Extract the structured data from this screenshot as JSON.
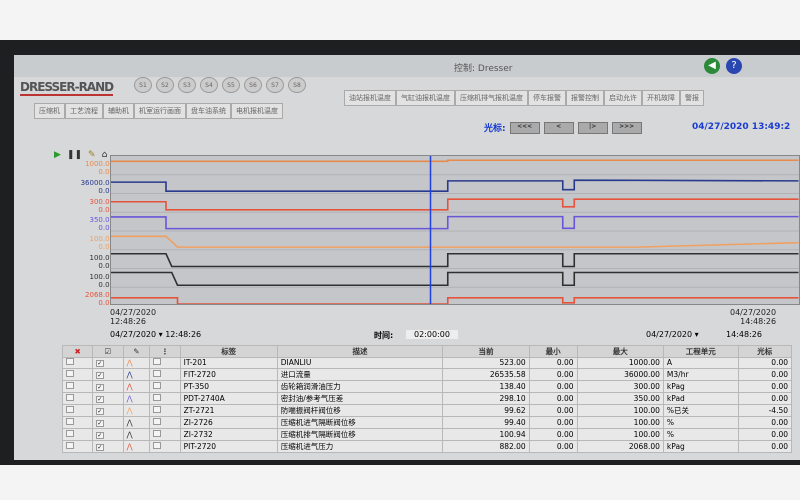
{
  "window": {
    "title": "控制: Dresser",
    "logo": "DRESSER-RAND",
    "back_icon": "arrow-left-icon",
    "help_icon": "question-icon"
  },
  "stations": [
    "S1",
    "S2",
    "S3",
    "S4",
    "S5",
    "S6",
    "S7",
    "S8"
  ],
  "tabs_top": [
    "油站报机温度",
    "气缸油报机温度",
    "压缩机排气报机温度",
    "停车报警",
    "报警控制",
    "启动允许",
    "开机故障",
    "警报"
  ],
  "tabs_bottom": [
    "压缩机",
    "工艺流程",
    "辅助机",
    "机室运行画面",
    "盘车油系统",
    "电机报机温度"
  ],
  "toolbar": {
    "cursor_label": "光标:",
    "buttons": [
      "<<<",
      "<",
      "|>",
      ">>>"
    ],
    "datetime": "04/27/2020 13:49:2"
  },
  "chart_data": {
    "type": "line",
    "x_start": "12:48:26",
    "x_end": "14:48:26",
    "x_start_label": {
      "date": "04/27/2020",
      "time": "12:48:26"
    },
    "x_end_label": {
      "date": "04/27/2020",
      "time": "14:48:26"
    },
    "cursor_time": "13:44",
    "series": [
      {
        "color": "#e88a4a",
        "ylim": [
          0,
          1000
        ],
        "max_label": "1000.00",
        "min_label": "0.00",
        "points": [
          [
            "12:48",
            900
          ],
          [
            "13:47",
            900
          ],
          [
            "13:47",
            980
          ],
          [
            "14:48",
            980
          ]
        ]
      },
      {
        "color": "#283a8c",
        "ylim": [
          0,
          36000
        ],
        "max_label": "36000.00",
        "min_label": "0.00",
        "points": [
          [
            "12:48",
            26500
          ],
          [
            "12:58",
            26500
          ],
          [
            "12:58",
            1000
          ],
          [
            "13:47",
            1000
          ],
          [
            "13:47",
            30000
          ],
          [
            "14:07",
            30000
          ],
          [
            "14:07",
            5000
          ],
          [
            "14:09",
            5000
          ],
          [
            "14:09",
            32000
          ],
          [
            "14:48",
            30000
          ]
        ]
      },
      {
        "color": "#e5533a",
        "ylim": [
          0,
          300
        ],
        "max_label": "300.00",
        "min_label": "0.00",
        "points": [
          [
            "12:48",
            200
          ],
          [
            "12:58",
            200
          ],
          [
            "12:58",
            10
          ],
          [
            "13:47",
            10
          ],
          [
            "13:47",
            260
          ],
          [
            "14:07",
            260
          ],
          [
            "14:07",
            80
          ],
          [
            "14:09",
            80
          ],
          [
            "14:09",
            260
          ],
          [
            "14:48",
            260
          ]
        ]
      },
      {
        "color": "#6a55d8",
        "ylim": [
          0,
          350
        ],
        "max_label": "350.00",
        "min_label": "0.00",
        "points": [
          [
            "12:48",
            330
          ],
          [
            "12:58",
            330
          ],
          [
            "12:58",
            10
          ],
          [
            "13:47",
            10
          ],
          [
            "13:47",
            340
          ],
          [
            "14:07",
            340
          ],
          [
            "14:07",
            20
          ],
          [
            "14:09",
            20
          ],
          [
            "14:09",
            340
          ],
          [
            "14:48",
            340
          ]
        ]
      },
      {
        "color": "#f0a060",
        "ylim": [
          0,
          100
        ],
        "max_label": "100.00",
        "min_label": "0.00",
        "points": [
          [
            "12:48",
            90
          ],
          [
            "12:58",
            90
          ],
          [
            "13:00",
            5
          ],
          [
            "14:20",
            5
          ],
          [
            "14:48",
            40
          ]
        ]
      },
      {
        "color": "#303030",
        "ylim": [
          0,
          100
        ],
        "max_label": "100.00",
        "min_label": "0.00",
        "points": [
          [
            "12:48",
            100
          ],
          [
            "12:58",
            100
          ],
          [
            "12:59",
            0
          ],
          [
            "13:47",
            0
          ],
          [
            "13:47",
            100
          ],
          [
            "14:07",
            100
          ],
          [
            "14:07",
            0
          ],
          [
            "14:09",
            0
          ],
          [
            "14:09",
            100
          ],
          [
            "14:48",
            100
          ]
        ]
      },
      {
        "color": "#303030",
        "ylim": [
          0,
          100
        ],
        "max_label": "100.00",
        "min_label": "0.00",
        "points": [
          [
            "12:48",
            100
          ],
          [
            "12:59",
            100
          ],
          [
            "13:00",
            0
          ],
          [
            "13:47",
            0
          ],
          [
            "13:47",
            100
          ],
          [
            "14:07",
            100
          ],
          [
            "14:07",
            0
          ],
          [
            "14:09",
            0
          ],
          [
            "14:09",
            100
          ],
          [
            "14:48",
            100
          ]
        ]
      },
      {
        "color": "#e5533a",
        "ylim": [
          0,
          2068
        ],
        "max_label": "2068.00",
        "min_label": "0.00",
        "points": [
          [
            "12:48",
            1000
          ],
          [
            "13:00",
            1000
          ],
          [
            "13:00",
            0
          ],
          [
            "13:47",
            0
          ],
          [
            "13:47",
            1000
          ],
          [
            "14:07",
            1000
          ],
          [
            "14:07",
            200
          ],
          [
            "14:09",
            200
          ],
          [
            "14:09",
            1000
          ],
          [
            "14:48",
            1000
          ]
        ]
      }
    ]
  },
  "timebar": {
    "start": "04/27/2020 ▾ 12:48:26",
    "span_label": "时间:",
    "span": "02:00:00",
    "end_date": "04/27/2020 ▾",
    "end_time": "14:48:26"
  },
  "table": {
    "headers": [
      "标签",
      "描述",
      "当前",
      "最小",
      "最大",
      "工程单元",
      "光标"
    ],
    "rows": [
      [
        "IT-201",
        "DIANLIU",
        "523.00",
        "0.00",
        "1000.00",
        "A",
        "0.00"
      ],
      [
        "FIT-2720",
        "进口流量",
        "26535.58",
        "0.00",
        "36000.00",
        "M3/hr",
        "0.00"
      ],
      [
        "PT-350",
        "齿轮箱润滑油压力",
        "138.40",
        "0.00",
        "300.00",
        "kPag",
        "0.00"
      ],
      [
        "PDT-2740A",
        "密封油/参考气压差",
        "298.10",
        "0.00",
        "350.00",
        "kPad",
        "0.00"
      ],
      [
        "ZT-2721",
        "防喘振阀杆阀位移",
        "99.62",
        "0.00",
        "100.00",
        "%已关",
        "-4.50"
      ],
      [
        "ZI-2726",
        "压缩机进气隔断阀位移",
        "99.40",
        "0.00",
        "100.00",
        "%",
        "0.00"
      ],
      [
        "ZI-2732",
        "压缩机排气隔断阀位移",
        "100.94",
        "0.00",
        "100.00",
        "%",
        "0.00"
      ],
      [
        "PIT-2720",
        "压缩机进气压力",
        "882.00",
        "0.00",
        "2068.00",
        "kPag",
        "0.00"
      ]
    ]
  }
}
